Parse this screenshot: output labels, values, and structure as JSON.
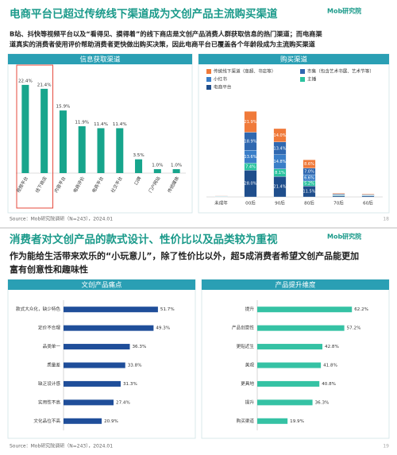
{
  "logo": "Mob研究院",
  "slides": [
    {
      "title": "电商平台已超过传统线下渠道成为文创产品主流购买渠道",
      "subtitle": [
        "B站、抖快等视频平台以及“看得见、摸得着”的线下商店是文创产品消费人群获取信息的热门渠道；而电商渠",
        "道真实的消费者使用评价帮助消费者更快做出购买决策，因此电商平台已覆盖各个年龄段成为主流购买渠道"
      ],
      "source": "Source：Mob研究院调研（N=243），2024.01",
      "page": "18"
    },
    {
      "title": "消费者对文创产品的款式设计、性价比以及品类较为重视",
      "subtitle": [
        "作为能给生活带来欢乐的“小玩意儿”，除了性价比以外，超5成消费者希望文创产品能更加",
        "富有创意性和趣味性"
      ],
      "source": "Source：Mob研究院调研（N=243），2024.01",
      "page": "19"
    }
  ],
  "chart_data": [
    {
      "type": "bar",
      "title": "信息获取渠道",
      "categories": [
        "视频平台",
        "线下商店",
        "内容平台",
        "电商评价",
        "电商平台",
        "社交平台",
        "口碑",
        "门户网站",
        "传统媒体"
      ],
      "values": [
        22.4,
        21.4,
        15.9,
        11.9,
        11.4,
        11.4,
        3.5,
        1.0,
        1.0
      ],
      "value_labels": [
        "22.4%",
        "21.4%",
        "15.9%",
        "11.9%",
        "11.4%",
        "11.4%",
        "3.5%",
        "1.0%",
        "1.0%"
      ],
      "color": "#17a58c",
      "ylim": [
        0,
        25
      ],
      "highlight": [
        0,
        1
      ],
      "highlight_color": "#e5483b"
    },
    {
      "type": "stacked_bar",
      "title": "购买渠道",
      "categories": [
        "未成年",
        "00后",
        "90后",
        "80后",
        "70后",
        "60后"
      ],
      "ylim": [
        0,
        95
      ],
      "series": [
        {
          "name": "电商平台",
          "color": "#1f4e8c",
          "values": [
            0.3,
            28.0,
            21.4,
            11.5,
            1.2,
            1.0
          ],
          "value_labels": [
            null,
            "28.0%",
            "21.4%",
            "11.5%",
            null,
            null
          ]
        },
        {
          "name": "主播",
          "color": "#2cc3a0",
          "values": [
            0.3,
            7.4,
            8.1,
            5.2,
            0.5,
            0.4
          ],
          "value_labels": [
            null,
            "7.4%",
            "8.1%",
            "5.2%",
            null,
            null
          ]
        },
        {
          "name": "小红书",
          "color": "#3a7ec8",
          "values": [
            0.3,
            13.6,
            14.8,
            6.6,
            0.6,
            0.5
          ],
          "value_labels": [
            null,
            "13.6%",
            "14.8%",
            "6.6%",
            null,
            null
          ]
        },
        {
          "name": "市集（包含艺术书展、艺术节等）",
          "color": "#2f68b0",
          "values": [
            0.3,
            18.9,
            13.4,
            7.0,
            0.7,
            0.6
          ],
          "value_labels": [
            null,
            "18.9%",
            "13.4%",
            "7.0%",
            null,
            null
          ]
        },
        {
          "name": "传统线下渠道（商超、书店等）",
          "color": "#f07a3a",
          "values": [
            0.3,
            21.9,
            14.0,
            8.6,
            0.8,
            0.7
          ],
          "value_labels": [
            null,
            "21.9%",
            "14.0%",
            "8.6%",
            null,
            null
          ]
        }
      ]
    },
    {
      "type": "hbar",
      "title": "文创产品痛点",
      "categories": [
        "款式大众化，缺少特色",
        "定价不合理",
        "品类单一",
        "质量差",
        "缺乏设计感",
        "实用性不高",
        "文化品位不高"
      ],
      "values": [
        51.7,
        49.3,
        36.3,
        33.8,
        31.3,
        27.4,
        20.9
      ],
      "value_labels": [
        "51.7%",
        "49.3%",
        "36.3%",
        "33.8%",
        "31.3%",
        "27.4%",
        "20.9%"
      ],
      "color": "#1f4e9a",
      "xlim": [
        0,
        60
      ]
    },
    {
      "type": "hbar",
      "title": "产品提升维度",
      "categories": [
        "提升",
        "产品创意性",
        "更贴近生",
        "美观",
        "更具地",
        "提升",
        "购买渠道"
      ],
      "values": [
        62.2,
        57.2,
        42.8,
        41.8,
        40.8,
        36.3,
        19.9
      ],
      "value_labels": [
        "62.2%",
        "57.2%",
        "42.8%",
        "41.8%",
        "40.8%",
        "36.3%",
        "19.9%"
      ],
      "color": "#35c2a4",
      "xlim": [
        0,
        72
      ]
    }
  ]
}
